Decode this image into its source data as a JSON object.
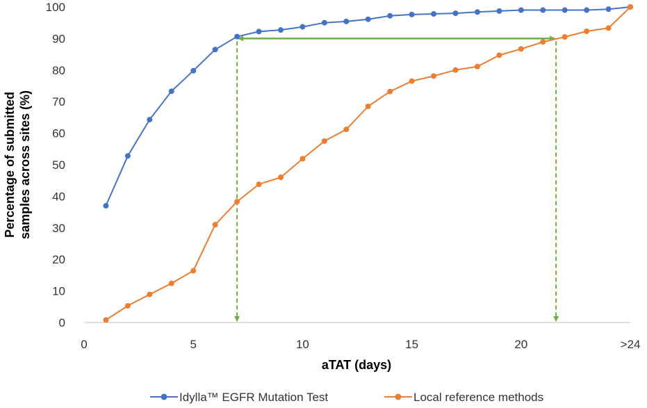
{
  "chart_data": {
    "type": "line",
    "xlabel": "aTAT (days)",
    "ylabel_line1": "Percentage of submitted",
    "ylabel_line2": "samples across sites (%)",
    "xlim": [
      0,
      25
    ],
    "ylim": [
      0,
      100
    ],
    "x_ticks": [
      {
        "value": 0,
        "label": "0"
      },
      {
        "value": 5,
        "label": "5"
      },
      {
        "value": 10,
        "label": "10"
      },
      {
        "value": 15,
        "label": "15"
      },
      {
        "value": 20,
        "label": "20"
      },
      {
        "value": 25,
        "label": ">24"
      }
    ],
    "y_ticks": [
      0,
      10,
      20,
      30,
      40,
      50,
      60,
      70,
      80,
      90,
      100
    ],
    "grid": false,
    "legend_position": "bottom",
    "series": [
      {
        "name": "Idylla™ EGFR Mutation Test",
        "color": "#4472C4",
        "x": [
          1,
          2,
          3,
          4,
          5,
          6,
          7,
          8,
          9,
          10,
          11,
          12,
          13,
          14,
          15,
          16,
          17,
          18,
          19,
          20,
          21,
          22,
          23,
          24,
          25
        ],
        "y": [
          37,
          52.8,
          64.3,
          73.3,
          79.8,
          86.5,
          90.6,
          92.2,
          92.7,
          93.7,
          95.0,
          95.4,
          96.1,
          97.2,
          97.6,
          97.8,
          98.0,
          98.4,
          98.7,
          99.0,
          99.0,
          99.0,
          99.0,
          99.3,
          100
        ]
      },
      {
        "name": "Local reference methods",
        "color": "#ED7D31",
        "x": [
          1,
          2,
          3,
          4,
          5,
          6,
          7,
          8,
          9,
          10,
          11,
          12,
          13,
          14,
          15,
          16,
          17,
          18,
          19,
          20,
          21,
          22,
          23,
          24,
          25
        ],
        "y": [
          0.8,
          5.3,
          8.9,
          12.4,
          16.4,
          31.0,
          38.3,
          43.8,
          46.0,
          51.9,
          57.5,
          61.2,
          68.5,
          73.2,
          76.5,
          78.1,
          80.0,
          81.1,
          84.7,
          86.7,
          88.9,
          90.5,
          92.3,
          93.3,
          100
        ]
      }
    ],
    "annotations": {
      "color": "#70AD47",
      "horizontal_arrow": {
        "x_from": 7,
        "x_to": 21.6,
        "y": 90
      },
      "vertical_arrows": [
        {
          "x": 7,
          "y_from": 90,
          "y_to": 0
        },
        {
          "x": 21.6,
          "y_from": 90,
          "y_to": 0
        }
      ]
    }
  }
}
